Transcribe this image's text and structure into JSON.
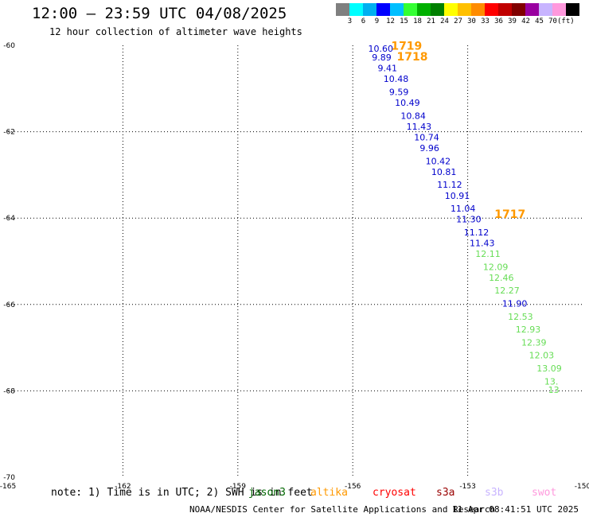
{
  "header": {
    "title": "12:00 – 23:59 UTC 04/08/2025",
    "subtitle": "12 hour collection of altimeter wave heights"
  },
  "legend": {
    "colors": [
      "#7f7f7f",
      "#00ffff",
      "#00b0f0",
      "#0000ff",
      "#00bfff",
      "#33ff33",
      "#00b000",
      "#008000",
      "#ffff00",
      "#ffc000",
      "#ff8c00",
      "#ff0000",
      "#c00000",
      "#800000",
      "#9900a0",
      "#c8b4ff",
      "#ff99dd",
      "#000000"
    ],
    "labels": [
      "3",
      "6",
      "9",
      "12",
      "15",
      "18",
      "21",
      "24",
      "27",
      "30",
      "33",
      "36",
      "39",
      "42",
      "45",
      "70"
    ],
    "unit": "(ft)"
  },
  "chart_data": {
    "type": "scatter",
    "x_range": [
      -165,
      -150
    ],
    "y_range": [
      -70,
      -60
    ],
    "x_ticks": [
      "-165",
      "-162",
      "-159",
      "-156",
      "-153",
      "-150"
    ],
    "y_ticks": [
      "-60",
      "-62",
      "-64",
      "-66",
      "-68",
      "-70"
    ],
    "grid": true,
    "points": [
      {
        "x": -155.6,
        "y": -60.15,
        "label": "10.60",
        "color": "#0000cc"
      },
      {
        "x": -155.5,
        "y": -60.35,
        "label": "9.89",
        "color": "#0000cc"
      },
      {
        "x": -155.35,
        "y": -60.6,
        "label": "9.41",
        "color": "#0000cc"
      },
      {
        "x": -155.2,
        "y": -60.85,
        "label": "10.48",
        "color": "#0000cc"
      },
      {
        "x": -155.05,
        "y": -61.15,
        "label": "9.59",
        "color": "#0000cc"
      },
      {
        "x": -154.9,
        "y": -61.4,
        "label": "10.49",
        "color": "#0000cc"
      },
      {
        "x": -154.75,
        "y": -61.7,
        "label": "10.84",
        "color": "#0000cc"
      },
      {
        "x": -154.6,
        "y": -61.95,
        "label": "11.43",
        "color": "#0000cc"
      },
      {
        "x": -154.4,
        "y": -62.2,
        "label": "10.74",
        "color": "#0000cc"
      },
      {
        "x": -154.25,
        "y": -62.45,
        "label": "9.96",
        "color": "#0000cc"
      },
      {
        "x": -154.1,
        "y": -62.75,
        "label": "10.42",
        "color": "#0000cc"
      },
      {
        "x": -153.95,
        "y": -63.0,
        "label": "10.81",
        "color": "#0000cc"
      },
      {
        "x": -153.8,
        "y": -63.3,
        "label": "11.12",
        "color": "#0000cc"
      },
      {
        "x": -153.6,
        "y": -63.55,
        "label": "10.91",
        "color": "#0000cc"
      },
      {
        "x": -153.45,
        "y": -63.85,
        "label": "11.04",
        "color": "#0000cc"
      },
      {
        "x": -153.3,
        "y": -64.1,
        "label": "11.30",
        "color": "#0000cc"
      },
      {
        "x": -153.1,
        "y": -64.4,
        "label": "11.12",
        "color": "#0000cc"
      },
      {
        "x": -152.95,
        "y": -64.65,
        "label": "11.43",
        "color": "#0000cc"
      },
      {
        "x": -152.8,
        "y": -64.9,
        "label": "12.11",
        "color": "#66dd55"
      },
      {
        "x": -152.6,
        "y": -65.2,
        "label": "12.09",
        "color": "#66dd55"
      },
      {
        "x": -152.45,
        "y": -65.45,
        "label": "12.46",
        "color": "#66dd55"
      },
      {
        "x": -152.3,
        "y": -65.75,
        "label": "12.27",
        "color": "#66dd55"
      },
      {
        "x": -152.1,
        "y": -66.05,
        "label": "11.90",
        "color": "#0000cc"
      },
      {
        "x": -151.95,
        "y": -66.35,
        "label": "12.53",
        "color": "#66dd55"
      },
      {
        "x": -151.75,
        "y": -66.65,
        "label": "12.93",
        "color": "#66dd55"
      },
      {
        "x": -151.6,
        "y": -66.95,
        "label": "12.39",
        "color": "#66dd55"
      },
      {
        "x": -151.4,
        "y": -67.25,
        "label": "12.03",
        "color": "#66dd55"
      },
      {
        "x": -151.2,
        "y": -67.55,
        "label": "13.09",
        "color": "#66dd55"
      },
      {
        "x": -151.0,
        "y": -67.85,
        "label": "13.",
        "color": "#66dd55"
      },
      {
        "x": -150.9,
        "y": -68.05,
        "label": "13",
        "color": "#66dd55"
      }
    ],
    "time_labels": [
      {
        "x": -155.0,
        "y": -60.1,
        "label": "1719",
        "color": "#ff9900"
      },
      {
        "x": -154.85,
        "y": -60.35,
        "label": "1718",
        "color": "#ff9900"
      },
      {
        "x": -152.3,
        "y": -64.0,
        "label": "1717",
        "color": "#ff9900"
      }
    ]
  },
  "footer": {
    "note": "note: 1) Time is in UTC; 2) SWH is in feet",
    "missions": [
      {
        "name": "jason3",
        "color": "#006600"
      },
      {
        "name": "altika",
        "color": "#ff9900"
      },
      {
        "name": "cryosat",
        "color": "#ff0000"
      },
      {
        "name": "s3a",
        "color": "#990000"
      },
      {
        "name": "s3b",
        "color": "#c8b4ff"
      },
      {
        "name": "swot",
        "color": "#ff99dd"
      }
    ],
    "credit": "NOAA/NESDIS Center for Satellite Applications and Research",
    "timestamp": "11 Apr 08:41:51 UTC 2025"
  }
}
